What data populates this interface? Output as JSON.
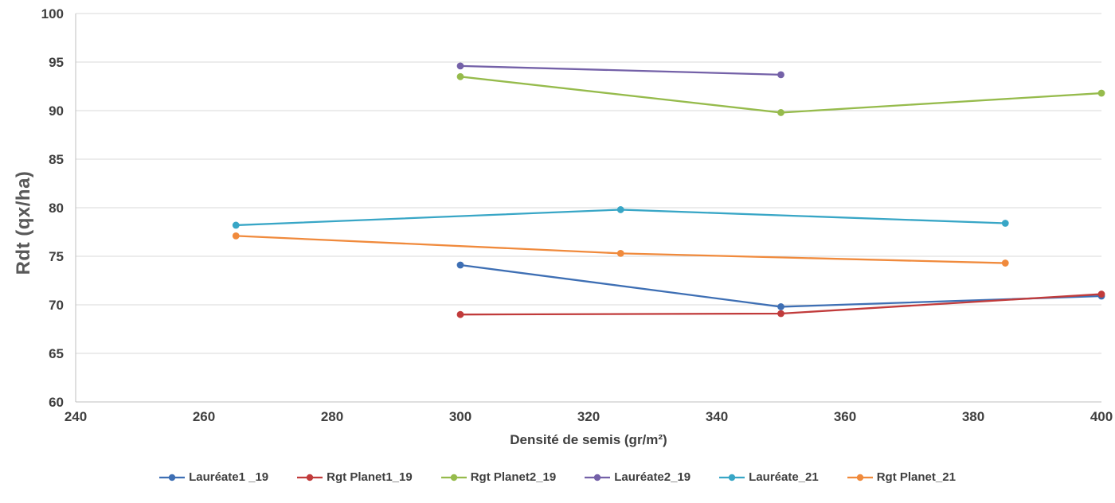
{
  "chart_data": {
    "type": "line",
    "title": "",
    "xlabel": "Densité de semis (gr/m²)",
    "ylabel": "Rdt (qx/ha)",
    "xlim": [
      240,
      400
    ],
    "ylim": [
      60,
      100
    ],
    "x_ticks": [
      240,
      260,
      280,
      300,
      320,
      340,
      360,
      380,
      400
    ],
    "y_ticks": [
      60,
      65,
      70,
      75,
      80,
      85,
      90,
      95,
      100
    ],
    "grid": "horizontal",
    "legend_position": "bottom",
    "grid_color": "#d9d9d9",
    "axis_color": "#bfbfbf",
    "text_color": "#3f3f3f",
    "series": [
      {
        "name": "Lauréate1 _19",
        "color": "#3e6fb4",
        "x": [
          300,
          350,
          400
        ],
        "y": [
          74.1,
          69.8,
          70.9
        ]
      },
      {
        "name": "Rgt Planet1_19",
        "color": "#c13b3b",
        "x": [
          300,
          350,
          400
        ],
        "y": [
          69.0,
          69.1,
          71.1
        ]
      },
      {
        "name": "Rgt Planet2_19",
        "color": "#96bb4c",
        "x": [
          300,
          350,
          400
        ],
        "y": [
          93.5,
          89.8,
          91.8
        ]
      },
      {
        "name": "Lauréate2_19",
        "color": "#7461a8",
        "x": [
          300,
          350
        ],
        "y": [
          94.6,
          93.7
        ]
      },
      {
        "name": "Lauréate_21",
        "color": "#38a6c6",
        "x": [
          265,
          325,
          385
        ],
        "y": [
          78.2,
          79.8,
          78.4
        ]
      },
      {
        "name": "Rgt Planet_21",
        "color": "#f08a3c",
        "x": [
          265,
          325,
          385
        ],
        "y": [
          77.1,
          75.3,
          74.3
        ]
      }
    ]
  }
}
